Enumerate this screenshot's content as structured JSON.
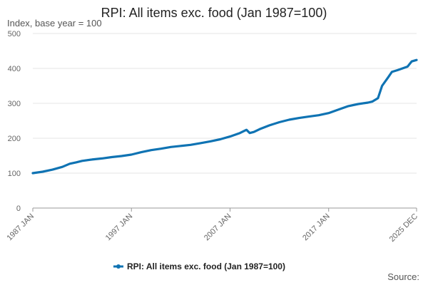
{
  "chart_data": {
    "type": "line",
    "title": "RPI: All items exc. food (Jan 1987=100)",
    "ylabel": "Index, base year = 100",
    "ylim": [
      0,
      500
    ],
    "yticks": [
      "0",
      "100",
      "200",
      "300",
      "400",
      "500"
    ],
    "xlim": [
      "1987-01",
      "2025-12"
    ],
    "xticks": [
      {
        "x": "1987-01",
        "label": "1987 JAN"
      },
      {
        "x": "1997-01",
        "label": "1997 JAN"
      },
      {
        "x": "2007-01",
        "label": "2007 JAN"
      },
      {
        "x": "2017-01",
        "label": "2017 JAN"
      },
      {
        "x": "2025-12",
        "label": "2025 DEC"
      }
    ],
    "grid": true,
    "legend": "bottom-center",
    "color": "#0f73b3",
    "series": [
      {
        "name": "RPI: All items exc. food (Jan 1987=100)",
        "x": [
          "1987-01",
          "1988-01",
          "1989-01",
          "1990-01",
          "1990-10",
          "1991-06",
          "1992-01",
          "1993-01",
          "1994-01",
          "1995-01",
          "1996-01",
          "1997-01",
          "1998-01",
          "1999-01",
          "2000-01",
          "2001-01",
          "2002-01",
          "2003-01",
          "2004-01",
          "2005-01",
          "2006-01",
          "2007-01",
          "2008-01",
          "2008-09",
          "2009-01",
          "2009-06",
          "2010-01",
          "2011-01",
          "2012-01",
          "2013-01",
          "2014-01",
          "2015-01",
          "2016-01",
          "2017-01",
          "2018-01",
          "2019-01",
          "2020-01",
          "2021-01",
          "2021-06",
          "2022-01",
          "2022-06",
          "2023-01",
          "2023-06",
          "2024-01",
          "2025-01",
          "2025-06",
          "2025-12"
        ],
        "values": [
          100,
          104,
          110,
          118,
          127,
          131,
          135,
          139,
          142,
          146,
          149,
          153,
          160,
          166,
          170,
          175,
          178,
          181,
          186,
          191,
          197,
          205,
          215,
          224,
          215,
          218,
          226,
          237,
          246,
          253,
          258,
          262,
          266,
          272,
          282,
          292,
          298,
          302,
          305,
          315,
          350,
          373,
          390,
          395,
          405,
          420,
          424
        ]
      }
    ]
  },
  "source_label": "Source:"
}
